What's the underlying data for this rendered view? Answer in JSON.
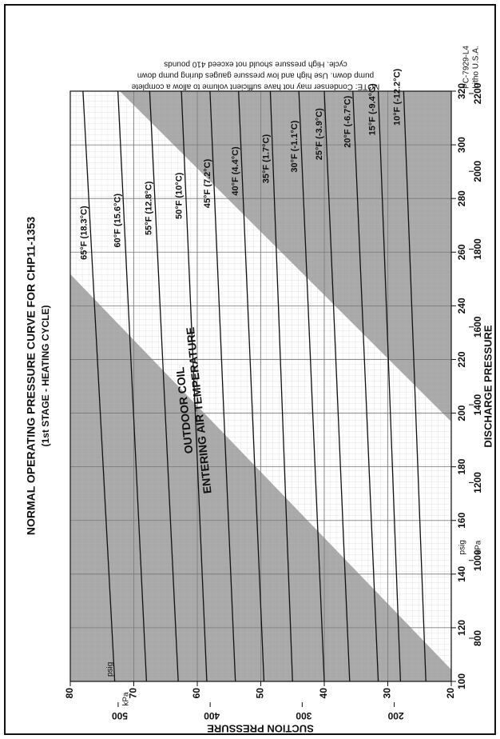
{
  "chart_data": {
    "type": "line",
    "title": "NORMAL OPERATING PRESSURE CURVE FOR CHP11-1353",
    "subtitle": "(1st STAGE - HEATING CYCLE)",
    "x_label": "DISCHARGE PRESSURE",
    "y_label": "SUCTION PRESSURE",
    "x_unit": "psig",
    "x2_unit": "kPa",
    "y_unit": "psig",
    "y2_unit": "kPa",
    "annotation": [
      "OUTDOOR COIL",
      "ENTERING AIR TEMPERATURE"
    ],
    "note": [
      "NOTE: Condenser may not have sufficient volume to allow a complete",
      "pump down. Use high and low pressure gauges during pump down",
      "cycle. High pressure should not exceed 410 pounds"
    ],
    "footer": [
      "PC-7929-L4",
      "Litho U.S.A."
    ],
    "x": [
      100,
      320
    ],
    "series": [
      {
        "name": "65°F (18.3°C)",
        "color": "#111111",
        "values": [
          73,
          78
        ]
      },
      {
        "name": "60°F (15.6°C)",
        "color": "#111111",
        "values": [
          68,
          72.5
        ]
      },
      {
        "name": "55°F (12.8°C)",
        "color": "#111111",
        "values": [
          63,
          67.5
        ]
      },
      {
        "name": "50°F (10°C)",
        "color": "#111111",
        "values": [
          58.5,
          62.5
        ]
      },
      {
        "name": "45°F (7.2°C)",
        "color": "#111111",
        "values": [
          54,
          58
        ]
      },
      {
        "name": "40°F (4.4°C)",
        "color": "#111111",
        "values": [
          49.5,
          53.5
        ]
      },
      {
        "name": "35°F (1.7°C)",
        "color": "#111111",
        "values": [
          45,
          48.5
        ]
      },
      {
        "name": "30°F (-1.1°C)",
        "color": "#111111",
        "values": [
          40,
          44
        ]
      },
      {
        "name": "25°F (-3.9°C)",
        "color": "#111111",
        "values": [
          36,
          40
        ]
      },
      {
        "name": "20°F (-6.7°C)",
        "color": "#111111",
        "values": [
          31.5,
          35.5
        ]
      },
      {
        "name": "15°F (-9.4°C)",
        "color": "#111111",
        "values": [
          28,
          31.5
        ]
      },
      {
        "name": "10°F (-12.2°C)",
        "color": "#111111",
        "values": [
          24,
          27.5
        ]
      }
    ],
    "xlim": [
      100,
      320
    ],
    "xticks": [
      100,
      120,
      140,
      160,
      180,
      200,
      220,
      240,
      260,
      280,
      300,
      320
    ],
    "x2lim": [
      689,
      2206
    ],
    "x2ticks": [
      800,
      1000,
      1200,
      1400,
      1600,
      1800,
      2000,
      2200
    ],
    "ylim": [
      20,
      80
    ],
    "yticks": [
      20,
      30,
      40,
      50,
      60,
      70,
      80
    ],
    "y2lim": [
      138,
      552
    ],
    "y2ticks": [
      200,
      300,
      400,
      500
    ],
    "grid": true,
    "shade_color": "#a9a9a9"
  }
}
